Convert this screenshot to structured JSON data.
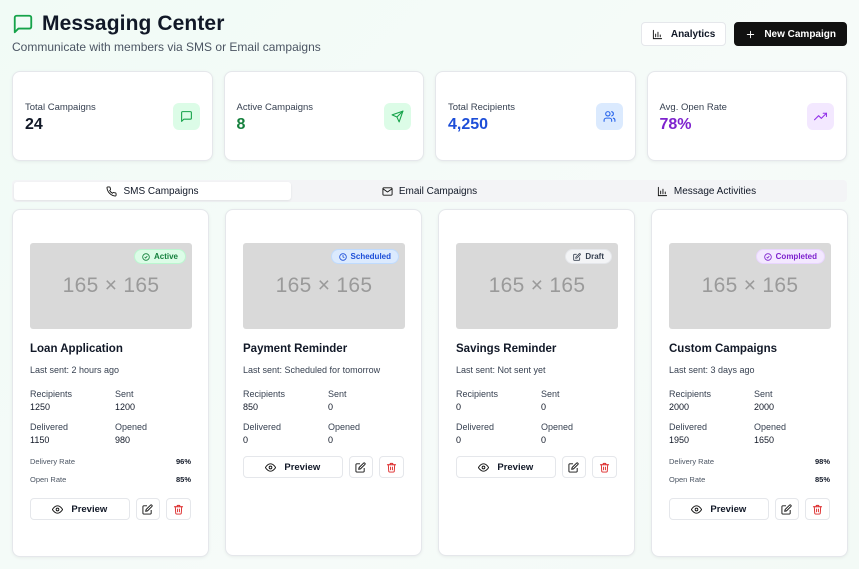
{
  "header": {
    "title": "Messaging Center",
    "subtitle": "Communicate with members via SMS or Email campaigns",
    "analytics_label": "Analytics",
    "new_campaign_label": "New Campaign"
  },
  "stats": [
    {
      "label": "Total Campaigns",
      "value": "24",
      "color": "#111827",
      "icon": "message-square-icon",
      "icon_bg": "#dcfce7",
      "icon_color": "#16a34a"
    },
    {
      "label": "Active Campaigns",
      "value": "8",
      "color": "#15803d",
      "icon": "send-icon",
      "icon_bg": "#dcfce7",
      "icon_color": "#16a34a"
    },
    {
      "label": "Total Recipients",
      "value": "4,250",
      "color": "#1d4ed8",
      "icon": "users-icon",
      "icon_bg": "#dbeafe",
      "icon_color": "#2563eb"
    },
    {
      "label": "Avg. Open Rate",
      "value": "78%",
      "color": "#7e22ce",
      "icon": "trending-up-icon",
      "icon_bg": "#f3e8ff",
      "icon_color": "#9333ea"
    }
  ],
  "tabs": [
    {
      "label": "SMS Campaigns",
      "icon": "phone-icon",
      "active": true
    },
    {
      "label": "Email Campaigns",
      "icon": "mail-icon",
      "active": false
    },
    {
      "label": "Message Activities",
      "icon": "bar-chart-icon",
      "active": false
    }
  ],
  "cards": [
    {
      "title": "Loan Application",
      "status": "Active",
      "thumb": "165 × 165",
      "last_sent": "Last sent: 2 hours ago",
      "recipients_label": "Recipients",
      "recipients": "1250",
      "sent_label": "Sent",
      "sent": "1200",
      "delivered_label": "Delivered",
      "delivered": "1150",
      "opened_label": "Opened",
      "opened": "980",
      "delivery_rate_label": "Delivery Rate",
      "delivery_rate": "96%",
      "open_rate_label": "Open Rate",
      "open_rate": "85%",
      "preview_label": "Preview"
    },
    {
      "title": "Payment Reminder",
      "status": "Scheduled",
      "thumb": "165 × 165",
      "last_sent": "Last sent: Scheduled for tomorrow",
      "recipients_label": "Recipients",
      "recipients": "850",
      "sent_label": "Sent",
      "sent": "0",
      "delivered_label": "Delivered",
      "delivered": "0",
      "opened_label": "Opened",
      "opened": "0",
      "preview_label": "Preview"
    },
    {
      "title": "Savings Reminder",
      "status": "Draft",
      "thumb": "165 × 165",
      "last_sent": "Last sent: Not sent yet",
      "recipients_label": "Recipients",
      "recipients": "0",
      "sent_label": "Sent",
      "sent": "0",
      "delivered_label": "Delivered",
      "delivered": "0",
      "opened_label": "Opened",
      "opened": "0",
      "preview_label": "Preview"
    },
    {
      "title": "Custom Campaigns",
      "status": "Completed",
      "thumb": "165 × 165",
      "last_sent": "Last sent: 3 days ago",
      "recipients_label": "Recipients",
      "recipients": "2000",
      "sent_label": "Sent",
      "sent": "2000",
      "delivered_label": "Delivered",
      "delivered": "1950",
      "opened_label": "Opened",
      "opened": "1650",
      "delivery_rate_label": "Delivery Rate",
      "delivery_rate": "98%",
      "open_rate_label": "Open Rate",
      "open_rate": "85%",
      "preview_label": "Preview"
    }
  ]
}
